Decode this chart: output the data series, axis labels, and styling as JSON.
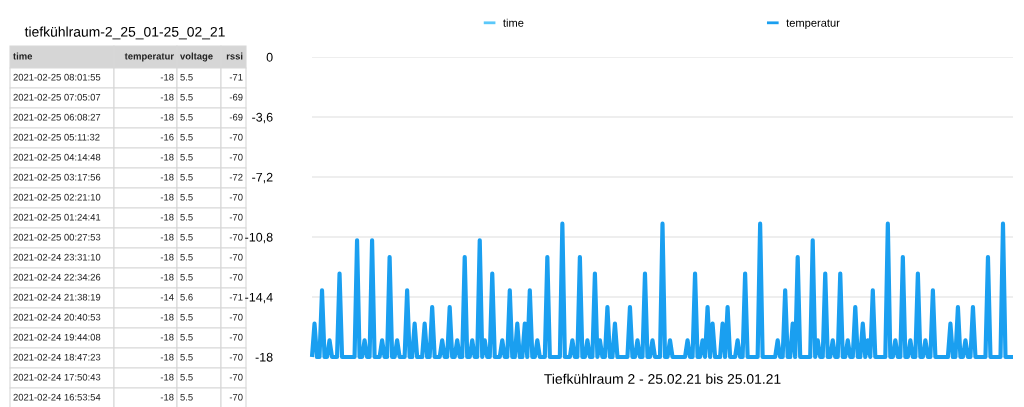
{
  "chart_data": [
    {
      "type": "other",
      "title": "tiefkühlraum-2_25_01-25_02_21",
      "categories": [
        "time",
        "temperatur",
        "voltage",
        "rssi"
      ],
      "cell_labels": [
        [
          "2021-02-25 08:01:55",
          "-18",
          "5.5",
          "-71"
        ],
        [
          "2021-02-25 07:05:07",
          "-18",
          "5.5",
          "-69"
        ],
        [
          "2021-02-25 06:08:27",
          "-18",
          "5.5",
          "-69"
        ],
        [
          "2021-02-25 05:11:32",
          "-16",
          "5.5",
          "-70"
        ],
        [
          "2021-02-25 04:14:48",
          "-18",
          "5.5",
          "-70"
        ],
        [
          "2021-02-25 03:17:56",
          "-18",
          "5.5",
          "-72"
        ],
        [
          "2021-02-25 02:21:10",
          "-18",
          "5.5",
          "-70"
        ],
        [
          "2021-02-25 01:24:41",
          "-18",
          "5.5",
          "-70"
        ],
        [
          "2021-02-25 00:27:53",
          "-18",
          "5.5",
          "-70"
        ],
        [
          "2021-02-24 23:31:10",
          "-18",
          "5.5",
          "-70"
        ],
        [
          "2021-02-24 22:34:26",
          "-18",
          "5.5",
          "-70"
        ],
        [
          "2021-02-24 21:38:19",
          "-14",
          "5.6",
          "-71"
        ],
        [
          "2021-02-24 20:40:53",
          "-18",
          "5.5",
          "-70"
        ],
        [
          "2021-02-24 19:44:08",
          "-18",
          "5.5",
          "-70"
        ],
        [
          "2021-02-24 18:47:23",
          "-18",
          "5.5",
          "-70"
        ],
        [
          "2021-02-24 17:50:43",
          "-18",
          "5.5",
          "-70"
        ],
        [
          "2021-02-24 16:53:54",
          "-18",
          "5.5",
          "-70"
        ]
      ]
    },
    {
      "type": "line",
      "xlabel": "Tiefkühlraum 2 - 25.02.21 bis 25.01.21",
      "ylim": [
        -18,
        0
      ],
      "yticks": [
        -18,
        {
          "value": -14.4,
          "label": "-14,4"
        },
        {
          "value": -10.8,
          "label": "-10,8"
        },
        {
          "value": -7.2,
          "label": "-7,2"
        },
        {
          "value": -3.6,
          "label": "-3,6"
        },
        0
      ],
      "grid": "y",
      "legend": "top",
      "tick_labels": "y",
      "marker": "none",
      "line_style": "solid",
      "categories": [
        null,
        null,
        null,
        null,
        null,
        null,
        null,
        null,
        null,
        null,
        null,
        null,
        null,
        null,
        null,
        null,
        null,
        null,
        null,
        null,
        null,
        null,
        null,
        null,
        null,
        null,
        null,
        null,
        null,
        null,
        null,
        null,
        null,
        null,
        null,
        null,
        null,
        null,
        null,
        null,
        null,
        null,
        null,
        null,
        null,
        null,
        null,
        null,
        null,
        null,
        null,
        null,
        null,
        null,
        null,
        null,
        null,
        null,
        null,
        null,
        null,
        null,
        null,
        null,
        null,
        null,
        null,
        null,
        null,
        null,
        null,
        null,
        null,
        null,
        null,
        null,
        null,
        null,
        null,
        null,
        null,
        null,
        null,
        null,
        null,
        null,
        null,
        null,
        null,
        null,
        null,
        null,
        null,
        null,
        null,
        null,
        null,
        null,
        null,
        null,
        null,
        null,
        null,
        null,
        null,
        null,
        null,
        null,
        null,
        null,
        null,
        null,
        null,
        null,
        null,
        null,
        null,
        null,
        null,
        null,
        null,
        null,
        null,
        null,
        null,
        null,
        null,
        null,
        null,
        null,
        null,
        null,
        null,
        null,
        null,
        null,
        null,
        null,
        null,
        null,
        null,
        null,
        null,
        null,
        null,
        null,
        null,
        null,
        null,
        null,
        null,
        null,
        null,
        null,
        null,
        null,
        null,
        null,
        null,
        null,
        null,
        null,
        null,
        null,
        null,
        null,
        null,
        null,
        null,
        null,
        null,
        null,
        null,
        null,
        null,
        null,
        null,
        null,
        null,
        null,
        null,
        null,
        null,
        null,
        null,
        null,
        null,
        null,
        null,
        null,
        null,
        null,
        null,
        null,
        null,
        null,
        null,
        null,
        null,
        null,
        null,
        null,
        null,
        null,
        null,
        null,
        null,
        null,
        null,
        null,
        null,
        null,
        null,
        null,
        null,
        null,
        null,
        null,
        null,
        null,
        null,
        null,
        null,
        null,
        null,
        null,
        null,
        null,
        null,
        null,
        null,
        null,
        null,
        null,
        null,
        null,
        null,
        null,
        null,
        null,
        null,
        null,
        null,
        null,
        null,
        null,
        null,
        null,
        null,
        null,
        null,
        null,
        null,
        null,
        null,
        null,
        null,
        null,
        null,
        null,
        null,
        null,
        null,
        null,
        null,
        null,
        null,
        null,
        null,
        null,
        null,
        null,
        null,
        null,
        null,
        null,
        null,
        null,
        null,
        null,
        null
      ],
      "series": [
        {
          "name": "time",
          "color": "#5ac8fa",
          "values": [
            null,
            null,
            null,
            null,
            null,
            null,
            null,
            null,
            null,
            null,
            null,
            null,
            null,
            null,
            null,
            null,
            null,
            null,
            null,
            null,
            null,
            null,
            null,
            null,
            null,
            null,
            null,
            null,
            null,
            null,
            null,
            null,
            null,
            null,
            null,
            null,
            null,
            null,
            null,
            null,
            null,
            null,
            null,
            null,
            null,
            null,
            null,
            null,
            null,
            null,
            null,
            null,
            null,
            null,
            null,
            null,
            null,
            null,
            null,
            null,
            null,
            null,
            null,
            null,
            null,
            null,
            null,
            null,
            null,
            null,
            null,
            null,
            null,
            null,
            null,
            null,
            null,
            null,
            null,
            null,
            null,
            null,
            null,
            null,
            null,
            null,
            null,
            null,
            null,
            null,
            null,
            null,
            null,
            null,
            null,
            null,
            null,
            null,
            null,
            null,
            null,
            null,
            null,
            null,
            null,
            null,
            null,
            null,
            null,
            null,
            null,
            null,
            null,
            null,
            null,
            null,
            null,
            null,
            null,
            null,
            null,
            null,
            null,
            null,
            null,
            null,
            null,
            null,
            null,
            null,
            null,
            null,
            null,
            null,
            null,
            null,
            null,
            null,
            null,
            null,
            null,
            null,
            null,
            null,
            null,
            null,
            null,
            null,
            null,
            null,
            null,
            null,
            null,
            null,
            null,
            null,
            null,
            null,
            null,
            null,
            null,
            null,
            null,
            null,
            null,
            null,
            null,
            null,
            null,
            null,
            null,
            null,
            null,
            null,
            null,
            null,
            null,
            null,
            null,
            null,
            null,
            null,
            null,
            null,
            null,
            null,
            null,
            null,
            null,
            null,
            null,
            null,
            null,
            null,
            null,
            null,
            null,
            null,
            null,
            null,
            null,
            null,
            null,
            null,
            null,
            null,
            null,
            null,
            null,
            null,
            null,
            null,
            null,
            null,
            null,
            null,
            null,
            null,
            null,
            null,
            null,
            null,
            null,
            null,
            null,
            null,
            null,
            null,
            null,
            null,
            null,
            null,
            null,
            null,
            null,
            null,
            null,
            null,
            null,
            null,
            null,
            null,
            null,
            null,
            null,
            null,
            null,
            null,
            null,
            null,
            null,
            null,
            null,
            null,
            null,
            null,
            null,
            null,
            null,
            null,
            null,
            null,
            null,
            null,
            null,
            null,
            null,
            null,
            null,
            null,
            null,
            null,
            null,
            null,
            null,
            null,
            null,
            null,
            null,
            null,
            null
          ]
        },
        {
          "name": "temperatur",
          "color": "#1a9ff0",
          "values": [
            -18,
            -16,
            -18,
            -18,
            -14,
            -18,
            -18,
            -17,
            -18,
            -18,
            -18,
            -13,
            -18,
            -18,
            -18,
            -18,
            -18,
            -18,
            -11,
            -18,
            -18,
            -17,
            -18,
            -18,
            -11,
            -18,
            -18,
            -18,
            -17,
            -18,
            -18,
            -12,
            -18,
            -18,
            -17,
            -18,
            -18,
            -18,
            -14,
            -18,
            -18,
            -16,
            -18,
            -18,
            -18,
            -16,
            -18,
            -18,
            -15,
            -18,
            -18,
            -18,
            -17,
            -18,
            -18,
            -15,
            -18,
            -18,
            -17,
            -18,
            -18,
            -12,
            -18,
            -18,
            -17,
            -18,
            -18,
            -11,
            -18,
            -17,
            -18,
            -18,
            -13,
            -18,
            -18,
            -18,
            -17,
            -18,
            -18,
            -14,
            -18,
            -18,
            -16,
            -18,
            -18,
            -16,
            -18,
            -14,
            -18,
            -18,
            -17,
            -18,
            -18,
            -18,
            -12,
            -18,
            -18,
            -18,
            -18,
            -18,
            -10,
            -18,
            -18,
            -18,
            -17,
            -18,
            -18,
            -12,
            -18,
            -18,
            -17,
            -18,
            -18,
            -13,
            -18,
            -17,
            -18,
            -18,
            -15,
            -18,
            -18,
            -16,
            -18,
            -18,
            -18,
            -18,
            -18,
            -15,
            -18,
            -18,
            -17,
            -18,
            -18,
            -13,
            -18,
            -18,
            -17,
            -18,
            -18,
            -18,
            -10,
            -18,
            -18,
            -17,
            -18,
            -18,
            -18,
            -18,
            -18,
            -18,
            -17,
            -18,
            -18,
            -13,
            -18,
            -18,
            -17,
            -18,
            -15,
            -18,
            -16,
            -18,
            -18,
            -18,
            -16,
            -18,
            -15,
            -18,
            -18,
            -18,
            -17,
            -18,
            -18,
            -13,
            -18,
            -18,
            -18,
            -18,
            -18,
            -10,
            -18,
            -18,
            -18,
            -18,
            -18,
            -18,
            -17,
            -18,
            -18,
            -14,
            -18,
            -18,
            -16,
            -18,
            -12,
            -18,
            -18,
            -18,
            -18,
            -18,
            -11,
            -18,
            -17,
            -18,
            -18,
            -13,
            -18,
            -18,
            -17,
            -18,
            -18,
            -13,
            -18,
            -18,
            -17,
            -18,
            -18,
            -15,
            -18,
            -18,
            -16,
            -18,
            -17,
            -18,
            -14,
            -18,
            -18,
            -18,
            -18,
            -18,
            -10,
            -18,
            -18,
            -17,
            -18,
            -18,
            -12,
            -18,
            -18,
            -17,
            -18,
            -18,
            -13,
            -18,
            -18,
            -17,
            -18,
            -18,
            -14,
            -18,
            -18,
            -18,
            -18,
            -18,
            -18,
            -16,
            -18,
            -18,
            -15,
            -18,
            -18,
            -17,
            -18,
            -18,
            -15,
            -18,
            -18,
            -18,
            -18,
            -18,
            -12,
            -18,
            -18,
            -18,
            -18,
            -18,
            -10,
            -18,
            -18,
            -18,
            -18
          ]
        }
      ]
    }
  ]
}
